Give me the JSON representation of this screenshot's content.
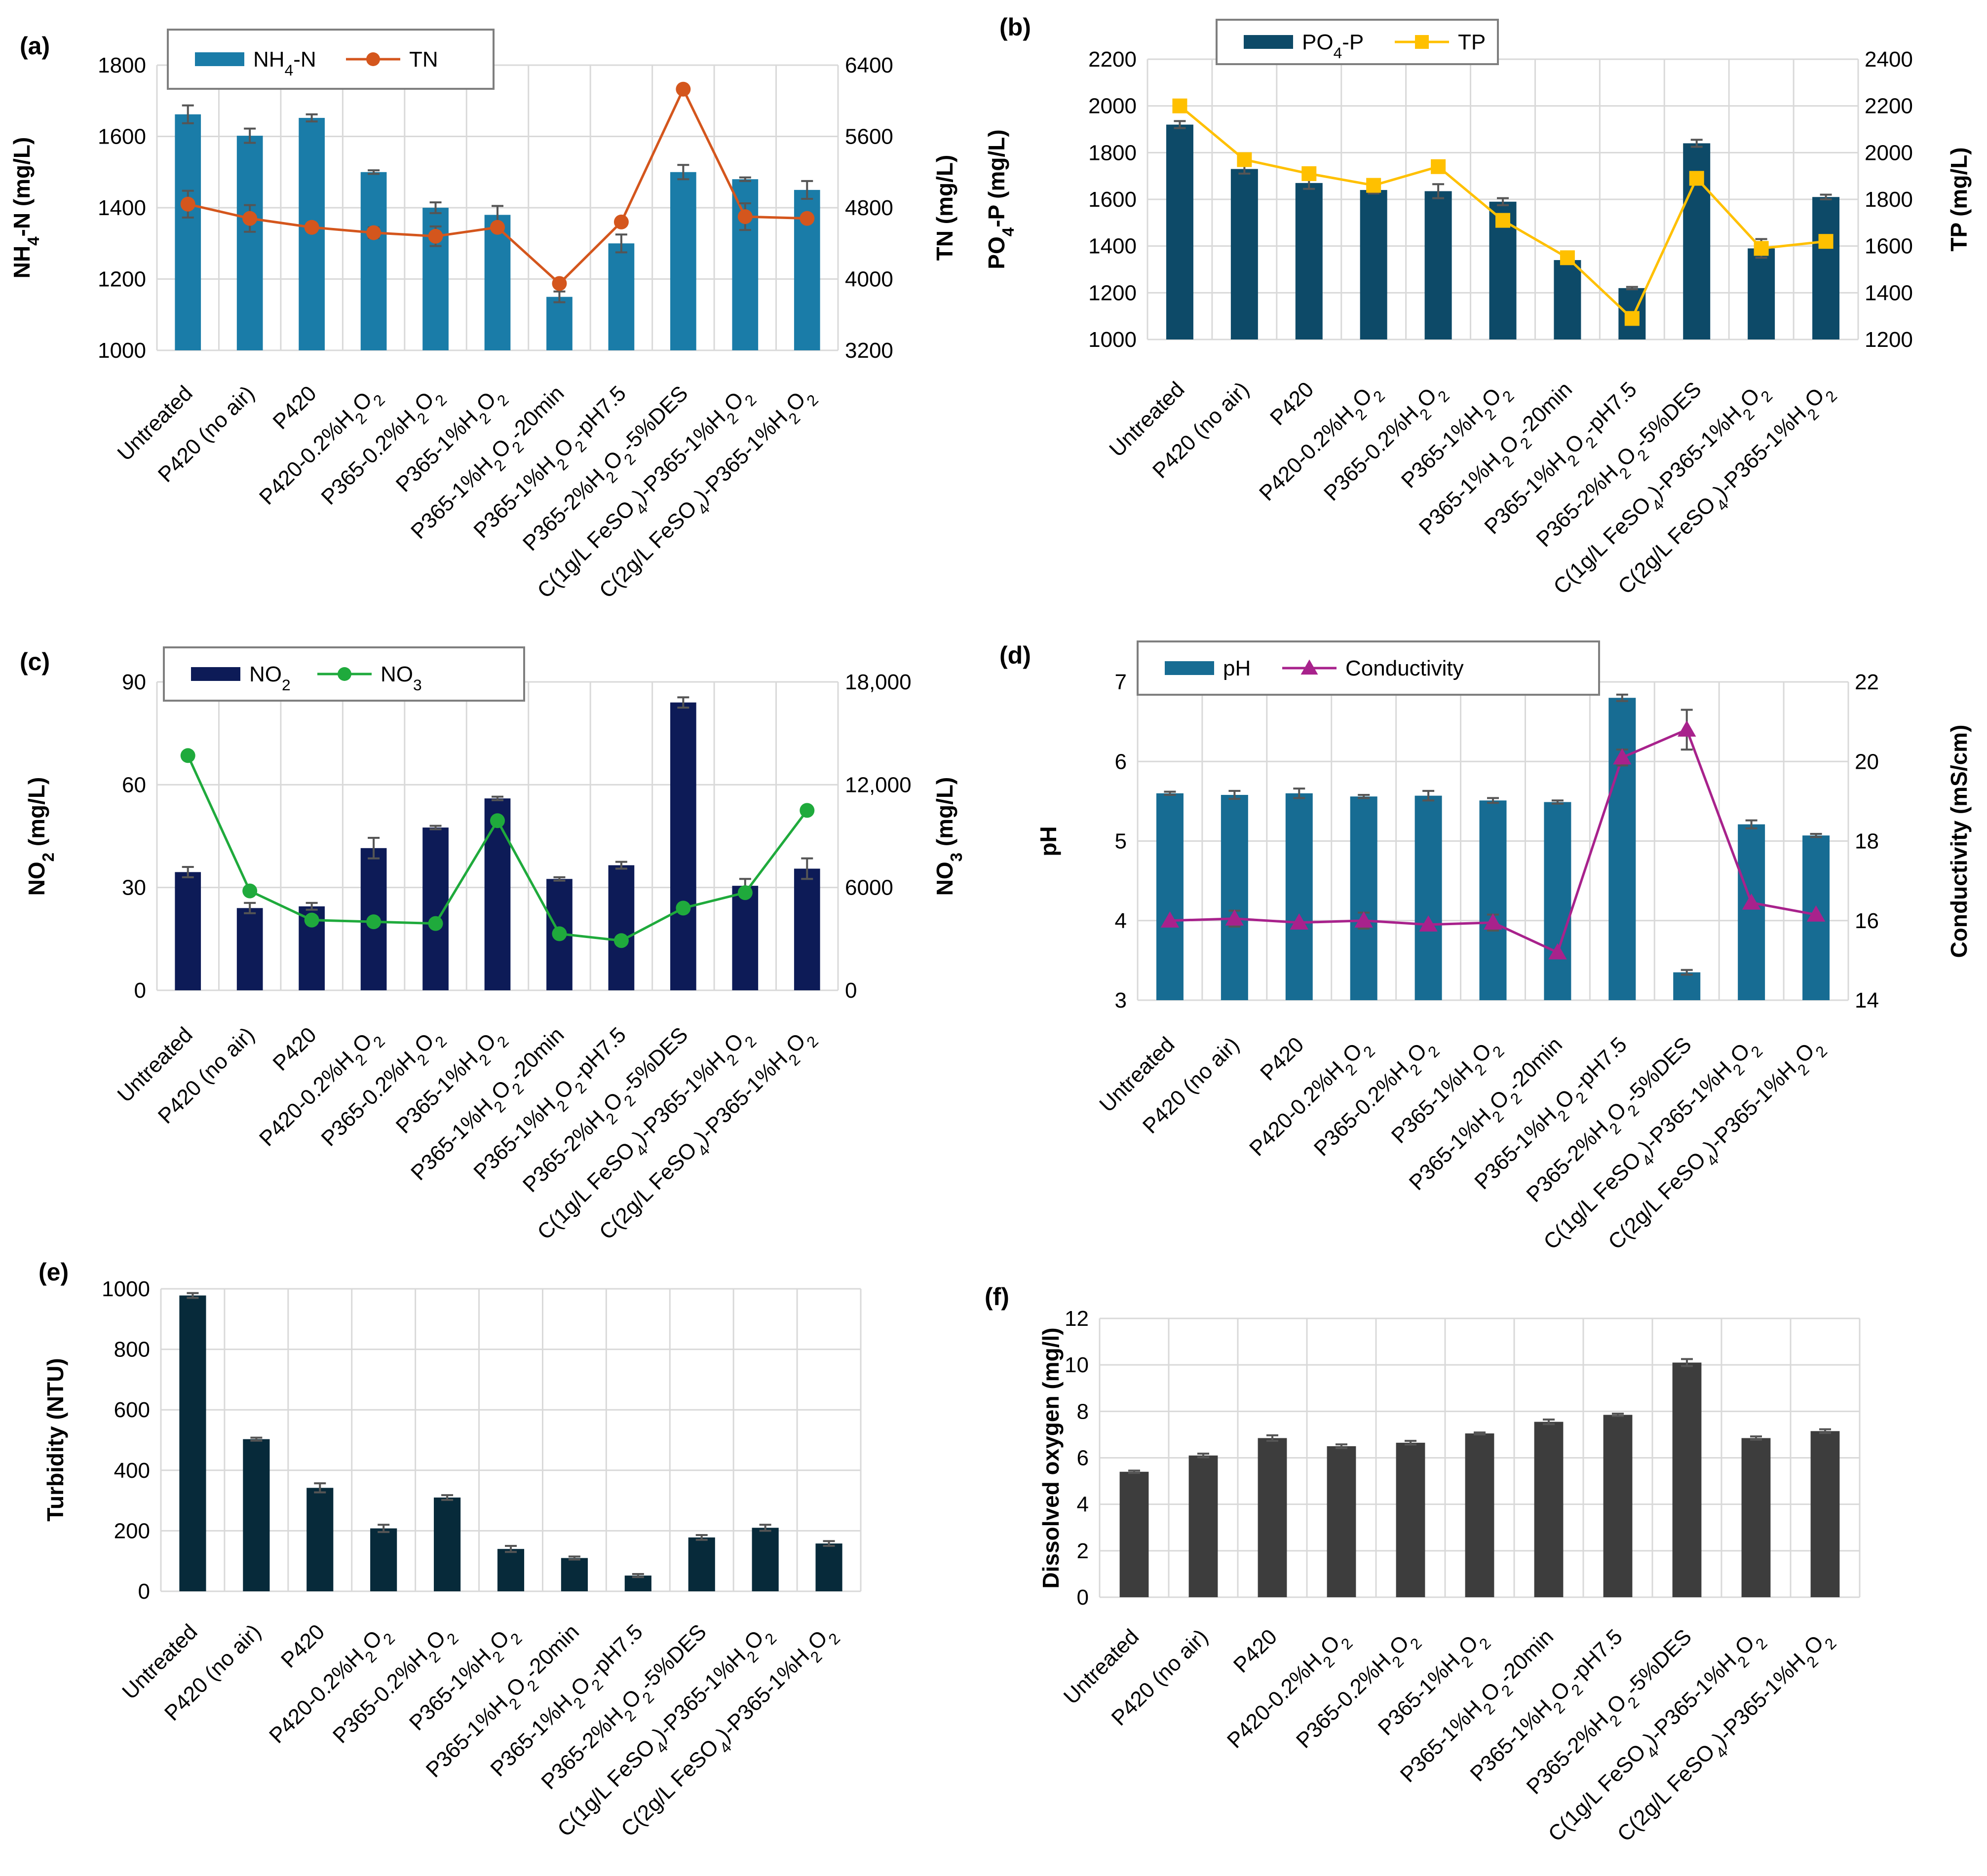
{
  "categories": [
    [
      "Untreated"
    ],
    [
      "P420 (no air)"
    ],
    [
      "P420"
    ],
    [
      "P420-0.2%H",
      {
        "t": "2",
        "s": "sub"
      },
      "O",
      {
        "t": "2",
        "s": "sub"
      }
    ],
    [
      "P365-0.2%H",
      {
        "t": "2",
        "s": "sub"
      },
      "O",
      {
        "t": "2",
        "s": "sub"
      }
    ],
    [
      "P365-1%H",
      {
        "t": "2",
        "s": "sub"
      },
      "O",
      {
        "t": "2",
        "s": "sub"
      }
    ],
    [
      "P365-1%H",
      {
        "t": "2",
        "s": "sub"
      },
      "O",
      {
        "t": "2",
        "s": "sub"
      },
      "-20min"
    ],
    [
      "P365-1%H",
      {
        "t": "2",
        "s": "sub"
      },
      "O",
      {
        "t": "2",
        "s": "sub"
      },
      "-pH7.5"
    ],
    [
      "P365-2%H",
      {
        "t": "2",
        "s": "sub"
      },
      "O",
      {
        "t": "2",
        "s": "sub"
      },
      "-5%DES"
    ],
    [
      "C(1g/L FeSO",
      {
        "t": "4",
        "s": "sub"
      },
      ")-P365-1%H",
      {
        "t": "2",
        "s": "sub"
      },
      "O",
      {
        "t": "2",
        "s": "sub"
      }
    ],
    [
      "C(2g/L FeSO",
      {
        "t": "4",
        "s": "sub"
      },
      ")-P365-1%H",
      {
        "t": "2",
        "s": "sub"
      },
      "O",
      {
        "t": "2",
        "s": "sub"
      }
    ]
  ],
  "chart_data": [
    {
      "panel": "(a)",
      "type": "bar+line",
      "left_axis": {
        "title": [
          "NH",
          {
            "t": "4",
            "s": "sub"
          },
          "-N (mg/L)"
        ],
        "min": 1000,
        "max": 1800,
        "step": 200,
        "ticks": [
          "1000",
          "1200",
          "1400",
          "1600",
          "1800"
        ]
      },
      "right_axis": {
        "title": [
          "TN (mg/L)"
        ],
        "min": 3200,
        "max": 6400,
        "step": 800,
        "ticks": [
          "3200",
          "4000",
          "4800",
          "5600",
          "6400"
        ]
      },
      "legend": [
        {
          "kind": "bar",
          "label": [
            "NH",
            {
              "t": "4",
              "s": "sub"
            },
            "-N"
          ],
          "color": "#1a7ca8"
        },
        {
          "kind": "line",
          "marker": "circle",
          "label": [
            "TN"
          ],
          "color": "#d4561d"
        }
      ],
      "bars": {
        "name": "NH4-N",
        "color": "#1a7ca8",
        "values": [
          1662,
          1602,
          1652,
          1500,
          1400,
          1380,
          1150,
          1300,
          1500,
          1480,
          1450
        ],
        "errors": [
          25,
          20,
          10,
          5,
          15,
          25,
          15,
          25,
          20,
          5,
          25
        ]
      },
      "line": {
        "name": "TN",
        "color": "#d4561d",
        "marker": "circle",
        "values": [
          4840,
          4680,
          4580,
          4520,
          4480,
          4580,
          3950,
          4640,
          6130,
          4700,
          4680
        ],
        "errors": [
          150,
          150,
          0,
          60,
          110,
          0,
          0,
          0,
          0,
          150,
          0
        ]
      }
    },
    {
      "panel": "(b)",
      "type": "bar+line",
      "left_axis": {
        "title": [
          "PO",
          {
            "t": "4",
            "s": "sub"
          },
          "-P (mg/L)"
        ],
        "min": 1000,
        "max": 2200,
        "step": 200,
        "ticks": [
          "1000",
          "1200",
          "1400",
          "1600",
          "1800",
          "2000",
          "2200"
        ]
      },
      "right_axis": {
        "title": [
          "TP (mg/L)"
        ],
        "min": 1200,
        "max": 2400,
        "step": 200,
        "ticks": [
          "1200",
          "1400",
          "1600",
          "1800",
          "2000",
          "2200",
          "2400"
        ]
      },
      "legend": [
        {
          "kind": "bar",
          "label": [
            "PO",
            {
              "t": "4",
              "s": "sub"
            },
            "-P"
          ],
          "color": "#0d4a68"
        },
        {
          "kind": "line",
          "marker": "square",
          "label": [
            "TP"
          ],
          "color": "#ffc000"
        }
      ],
      "bars": {
        "name": "PO4-P",
        "color": "#0d4a68",
        "values": [
          1920,
          1730,
          1670,
          1640,
          1635,
          1590,
          1340,
          1220,
          1840,
          1390,
          1610
        ],
        "errors": [
          15,
          20,
          25,
          15,
          30,
          15,
          5,
          5,
          15,
          40,
          10
        ]
      },
      "line": {
        "name": "TP",
        "color": "#ffc000",
        "marker": "square",
        "values": [
          2200,
          1970,
          1910,
          1860,
          1940,
          1710,
          1550,
          1290,
          1890,
          1590,
          1620
        ],
        "errors": [
          0,
          0,
          0,
          0,
          0,
          0,
          0,
          0,
          0,
          0,
          0
        ]
      }
    },
    {
      "panel": "(c)",
      "type": "bar+line",
      "left_axis": {
        "title": [
          "NO",
          {
            "t": "2",
            "s": "sub"
          },
          " (mg/L)"
        ],
        "min": 0,
        "max": 90,
        "step": 30,
        "ticks": [
          "0",
          "30",
          "60",
          "90"
        ]
      },
      "right_axis": {
        "title": [
          "NO",
          {
            "t": "3",
            "s": "sub"
          },
          " (mg/L)"
        ],
        "min": 0,
        "max": 18000,
        "step": 6000,
        "ticks": [
          "0",
          "6000",
          "12,000",
          "18,000"
        ]
      },
      "legend": [
        {
          "kind": "bar",
          "label": [
            "NO",
            {
              "t": "2",
              "s": "sub"
            }
          ],
          "color": "#0d1b57"
        },
        {
          "kind": "line",
          "marker": "circle",
          "label": [
            "NO",
            {
              "t": "3",
              "s": "sub"
            }
          ],
          "color": "#1faa3c"
        }
      ],
      "bars": {
        "name": "NO2",
        "color": "#0d1b57",
        "values": [
          34.5,
          24,
          24.5,
          41.5,
          47.5,
          56,
          32.5,
          36.5,
          84,
          30.5,
          35.5
        ],
        "errors": [
          1.5,
          1.5,
          1,
          3,
          0.5,
          0.5,
          0.5,
          1,
          1.5,
          2,
          3
        ]
      },
      "line": {
        "name": "NO3",
        "color": "#1faa3c",
        "marker": "circle",
        "values": [
          13700,
          5800,
          4100,
          4000,
          3900,
          9900,
          3300,
          2900,
          4800,
          5700,
          10500
        ],
        "errors": [
          0,
          0,
          0,
          0,
          0,
          0,
          0,
          0,
          0,
          0,
          0
        ]
      }
    },
    {
      "panel": "(d)",
      "type": "bar+line",
      "left_axis": {
        "title": [
          "pH"
        ],
        "min": 3,
        "max": 7,
        "step": 1,
        "ticks": [
          "3",
          "4",
          "5",
          "6",
          "7"
        ]
      },
      "right_axis": {
        "title": [
          "Conductivity (mS/cm)"
        ],
        "min": 14,
        "max": 22,
        "step": 2,
        "ticks": [
          "14",
          "16",
          "18",
          "20",
          "22"
        ]
      },
      "legend": [
        {
          "kind": "bar",
          "label": [
            "pH"
          ],
          "color": "#176c93"
        },
        {
          "kind": "line",
          "marker": "triangle",
          "label": [
            "Conductivity"
          ],
          "color": "#a8228c"
        }
      ],
      "bars": {
        "name": "pH",
        "color": "#176c93",
        "values": [
          5.6,
          5.58,
          5.6,
          5.56,
          5.57,
          5.51,
          5.49,
          6.8,
          3.35,
          5.21,
          5.07
        ],
        "errors": [
          0.02,
          0.05,
          0.06,
          0.02,
          0.06,
          0.03,
          0.02,
          0.04,
          0.03,
          0.05,
          0.02
        ]
      },
      "line": {
        "name": "Conductivity",
        "color": "#a8228c",
        "marker": "triangle",
        "values": [
          16,
          16.05,
          15.95,
          16,
          15.9,
          15.95,
          15.2,
          20.1,
          20.8,
          16.45,
          16.15
        ],
        "errors": [
          0,
          0.2,
          0,
          0.2,
          0,
          0.2,
          0,
          0.2,
          0.5,
          0,
          0
        ]
      }
    },
    {
      "panel": "(e)",
      "type": "bar",
      "left_axis": {
        "title": [
          "Turbidity (NTU)"
        ],
        "min": 0,
        "max": 1000,
        "step": 200,
        "ticks": [
          "0",
          "200",
          "400",
          "600",
          "800",
          "1000"
        ]
      },
      "bars": {
        "name": "Turbidity",
        "color": "#072a3a",
        "values": [
          978,
          503,
          342,
          208,
          310,
          140,
          110,
          52,
          178,
          210,
          158
        ],
        "errors": [
          8,
          5,
          15,
          12,
          8,
          10,
          5,
          5,
          8,
          10,
          8
        ]
      }
    },
    {
      "panel": "(f)",
      "type": "bar",
      "left_axis": {
        "title": [
          "Dissolved  oxygen (mg/l)"
        ],
        "min": 0,
        "max": 12,
        "step": 2,
        "ticks": [
          "0",
          "2",
          "4",
          "6",
          "8",
          "10",
          "12"
        ]
      },
      "bars": {
        "name": "Dissolved oxygen",
        "color": "#3d3d3d",
        "values": [
          5.4,
          6.1,
          6.85,
          6.5,
          6.65,
          7.05,
          7.55,
          7.85,
          10.1,
          6.85,
          7.15
        ],
        "errors": [
          0.05,
          0.08,
          0.12,
          0.08,
          0.08,
          0.04,
          0.1,
          0.05,
          0.15,
          0.07,
          0.08
        ]
      }
    }
  ]
}
